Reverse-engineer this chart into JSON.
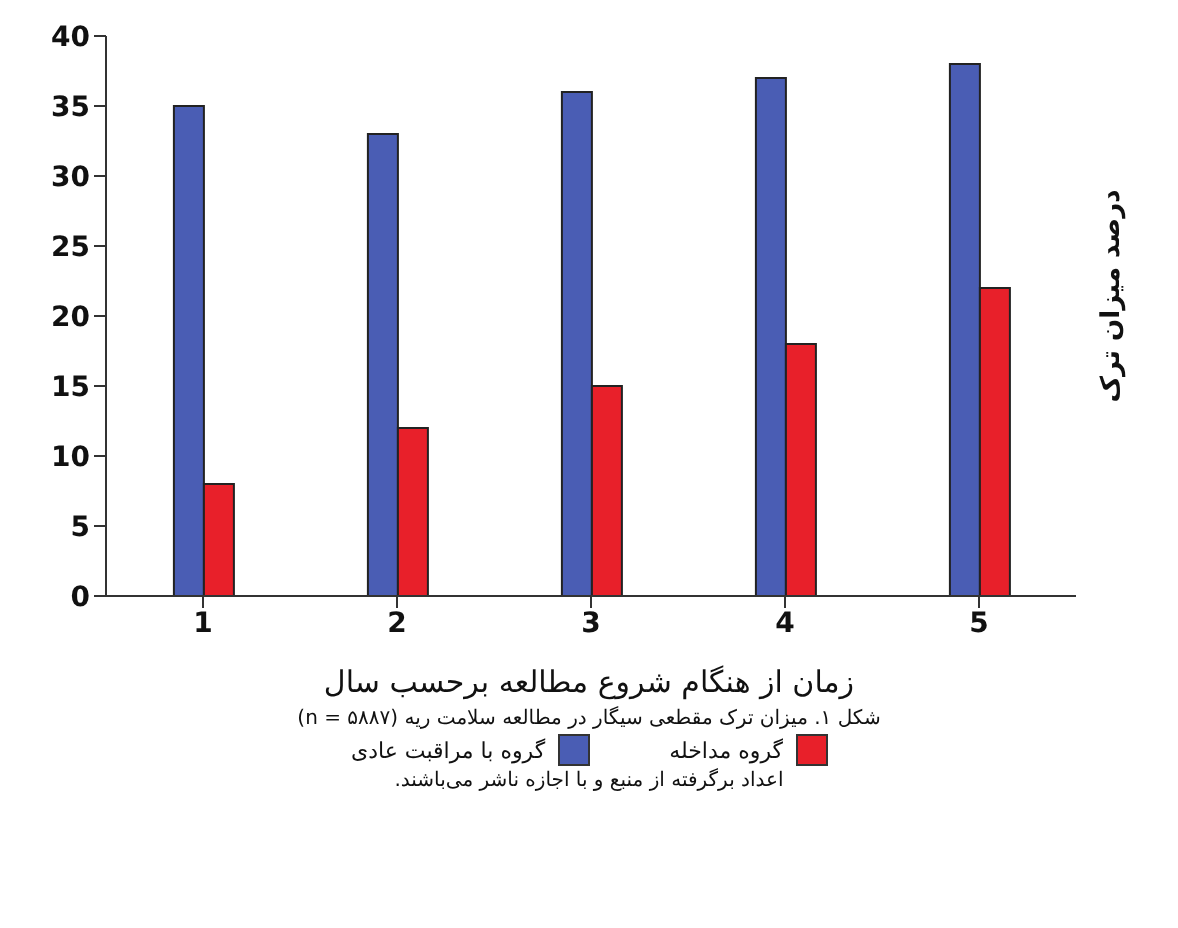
{
  "chart_data": {
    "type": "bar",
    "categories": [
      "1",
      "2",
      "3",
      "4",
      "5"
    ],
    "series": [
      {
        "name": "گروه با مراقبت عادی",
        "color": "#4a5db4",
        "values": [
          35,
          33,
          36,
          37,
          38
        ]
      },
      {
        "name": "گروه مداخله",
        "color": "#e8202a",
        "values": [
          8,
          12,
          15,
          18,
          22
        ]
      }
    ],
    "ylim": [
      0,
      40
    ],
    "yticks": [
      0,
      5,
      10,
      15,
      20,
      25,
      30,
      35,
      40
    ],
    "xlabel": "زمان از هنگام شروع مطالعه برحسب سال",
    "ylabel": "درصد میزان ترک",
    "annotations": [
      "شکل ۱. میزان ترک مقطعی سیگار در مطالعه سلامت ریه (n = ۵۸۸۷)",
      "اعداد برگرفته از منبع و با اجازه ناشر می‌باشند."
    ],
    "legend": "bottom",
    "grid": false
  }
}
